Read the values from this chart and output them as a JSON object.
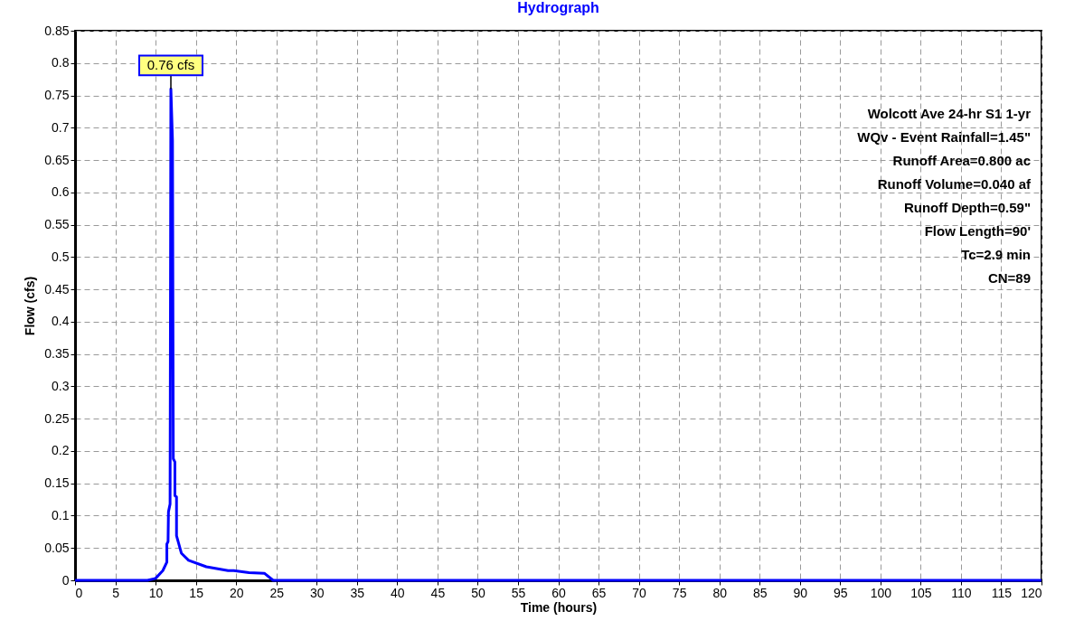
{
  "chart_data": {
    "type": "line",
    "title": "Hydrograph",
    "xlabel": "Time  (hours)",
    "ylabel": "Flow  (cfs)",
    "x": [
      0,
      9,
      10.0,
      10.9,
      11.4,
      11.4,
      11.55,
      11.6,
      11.8,
      11.9,
      12.1,
      12.2,
      12.4,
      12.4,
      12.6,
      12.6,
      13.2,
      14.1,
      16.3,
      19.0,
      19.7,
      21.6,
      23.5,
      24.6,
      120
    ],
    "series": [
      {
        "color": "#0000ff",
        "values": [
          0,
          0,
          0.003,
          0.015,
          0.028,
          0.056,
          0.06,
          0.106,
          0.118,
          0.76,
          0.68,
          0.188,
          0.183,
          0.131,
          0.129,
          0.069,
          0.042,
          0.031,
          0.021,
          0.015,
          0.015,
          0.012,
          0.011,
          0,
          0
        ]
      }
    ],
    "xlim": [
      0,
      120
    ],
    "ylim": [
      0,
      0.85
    ],
    "xticks": [
      0,
      5,
      10,
      15,
      20,
      25,
      30,
      35,
      40,
      45,
      50,
      55,
      60,
      65,
      70,
      75,
      80,
      85,
      90,
      95,
      100,
      105,
      110,
      115,
      120
    ],
    "yticks": [
      0,
      0.05,
      0.1,
      0.15,
      0.2,
      0.25,
      0.3,
      0.35,
      0.4,
      0.45,
      0.5,
      0.55,
      0.6,
      0.65,
      0.7,
      0.75,
      0.8,
      0.85
    ],
    "grid": true,
    "marker": "none",
    "line_style": "solid",
    "annotations": [
      {
        "text": "0.76 cfs",
        "x": 11.9,
        "y": 0.76
      },
      "Wolcott Ave 24-hr S1 1-yr",
      "WQv - Event Rainfall=1.45\"",
      "Runoff Area=0.800 ac",
      "Runoff Volume=0.040 af",
      "Runoff Depth=0.59\"",
      "Flow Length=90'",
      "Tc=2.9 min",
      "CN=89"
    ]
  }
}
